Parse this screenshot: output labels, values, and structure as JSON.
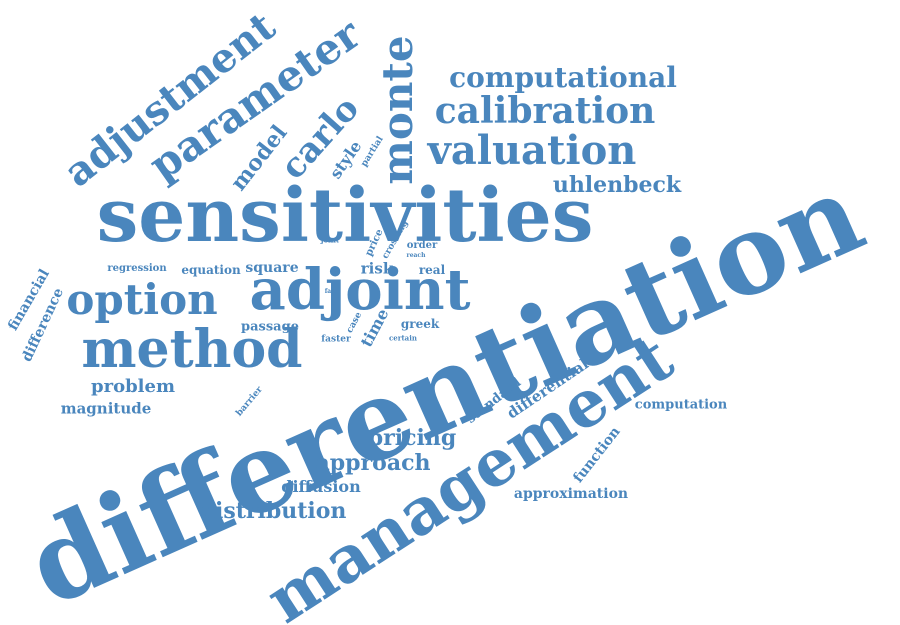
{
  "color": "#4a86bd",
  "words": [
    "differentiation",
    "sensitivities",
    "management",
    "adjoint",
    "method",
    "option",
    "parameter",
    "adjustment",
    "monte",
    "carlo",
    "model",
    "computational",
    "calibration",
    "valuation",
    "uhlenbeck",
    "pricing",
    "approach",
    "distribution",
    "diffusion",
    "problem",
    "magnitude",
    "approximation",
    "computation",
    "function",
    "differential",
    "standard",
    "financial",
    "difference",
    "regression",
    "equation",
    "square",
    "passage",
    "risk",
    "real",
    "time",
    "greek",
    "faster",
    "certain",
    "case",
    "fast",
    "price",
    "crossing",
    "order",
    "reach",
    "joint",
    "style",
    "partial",
    "barrier"
  ]
}
